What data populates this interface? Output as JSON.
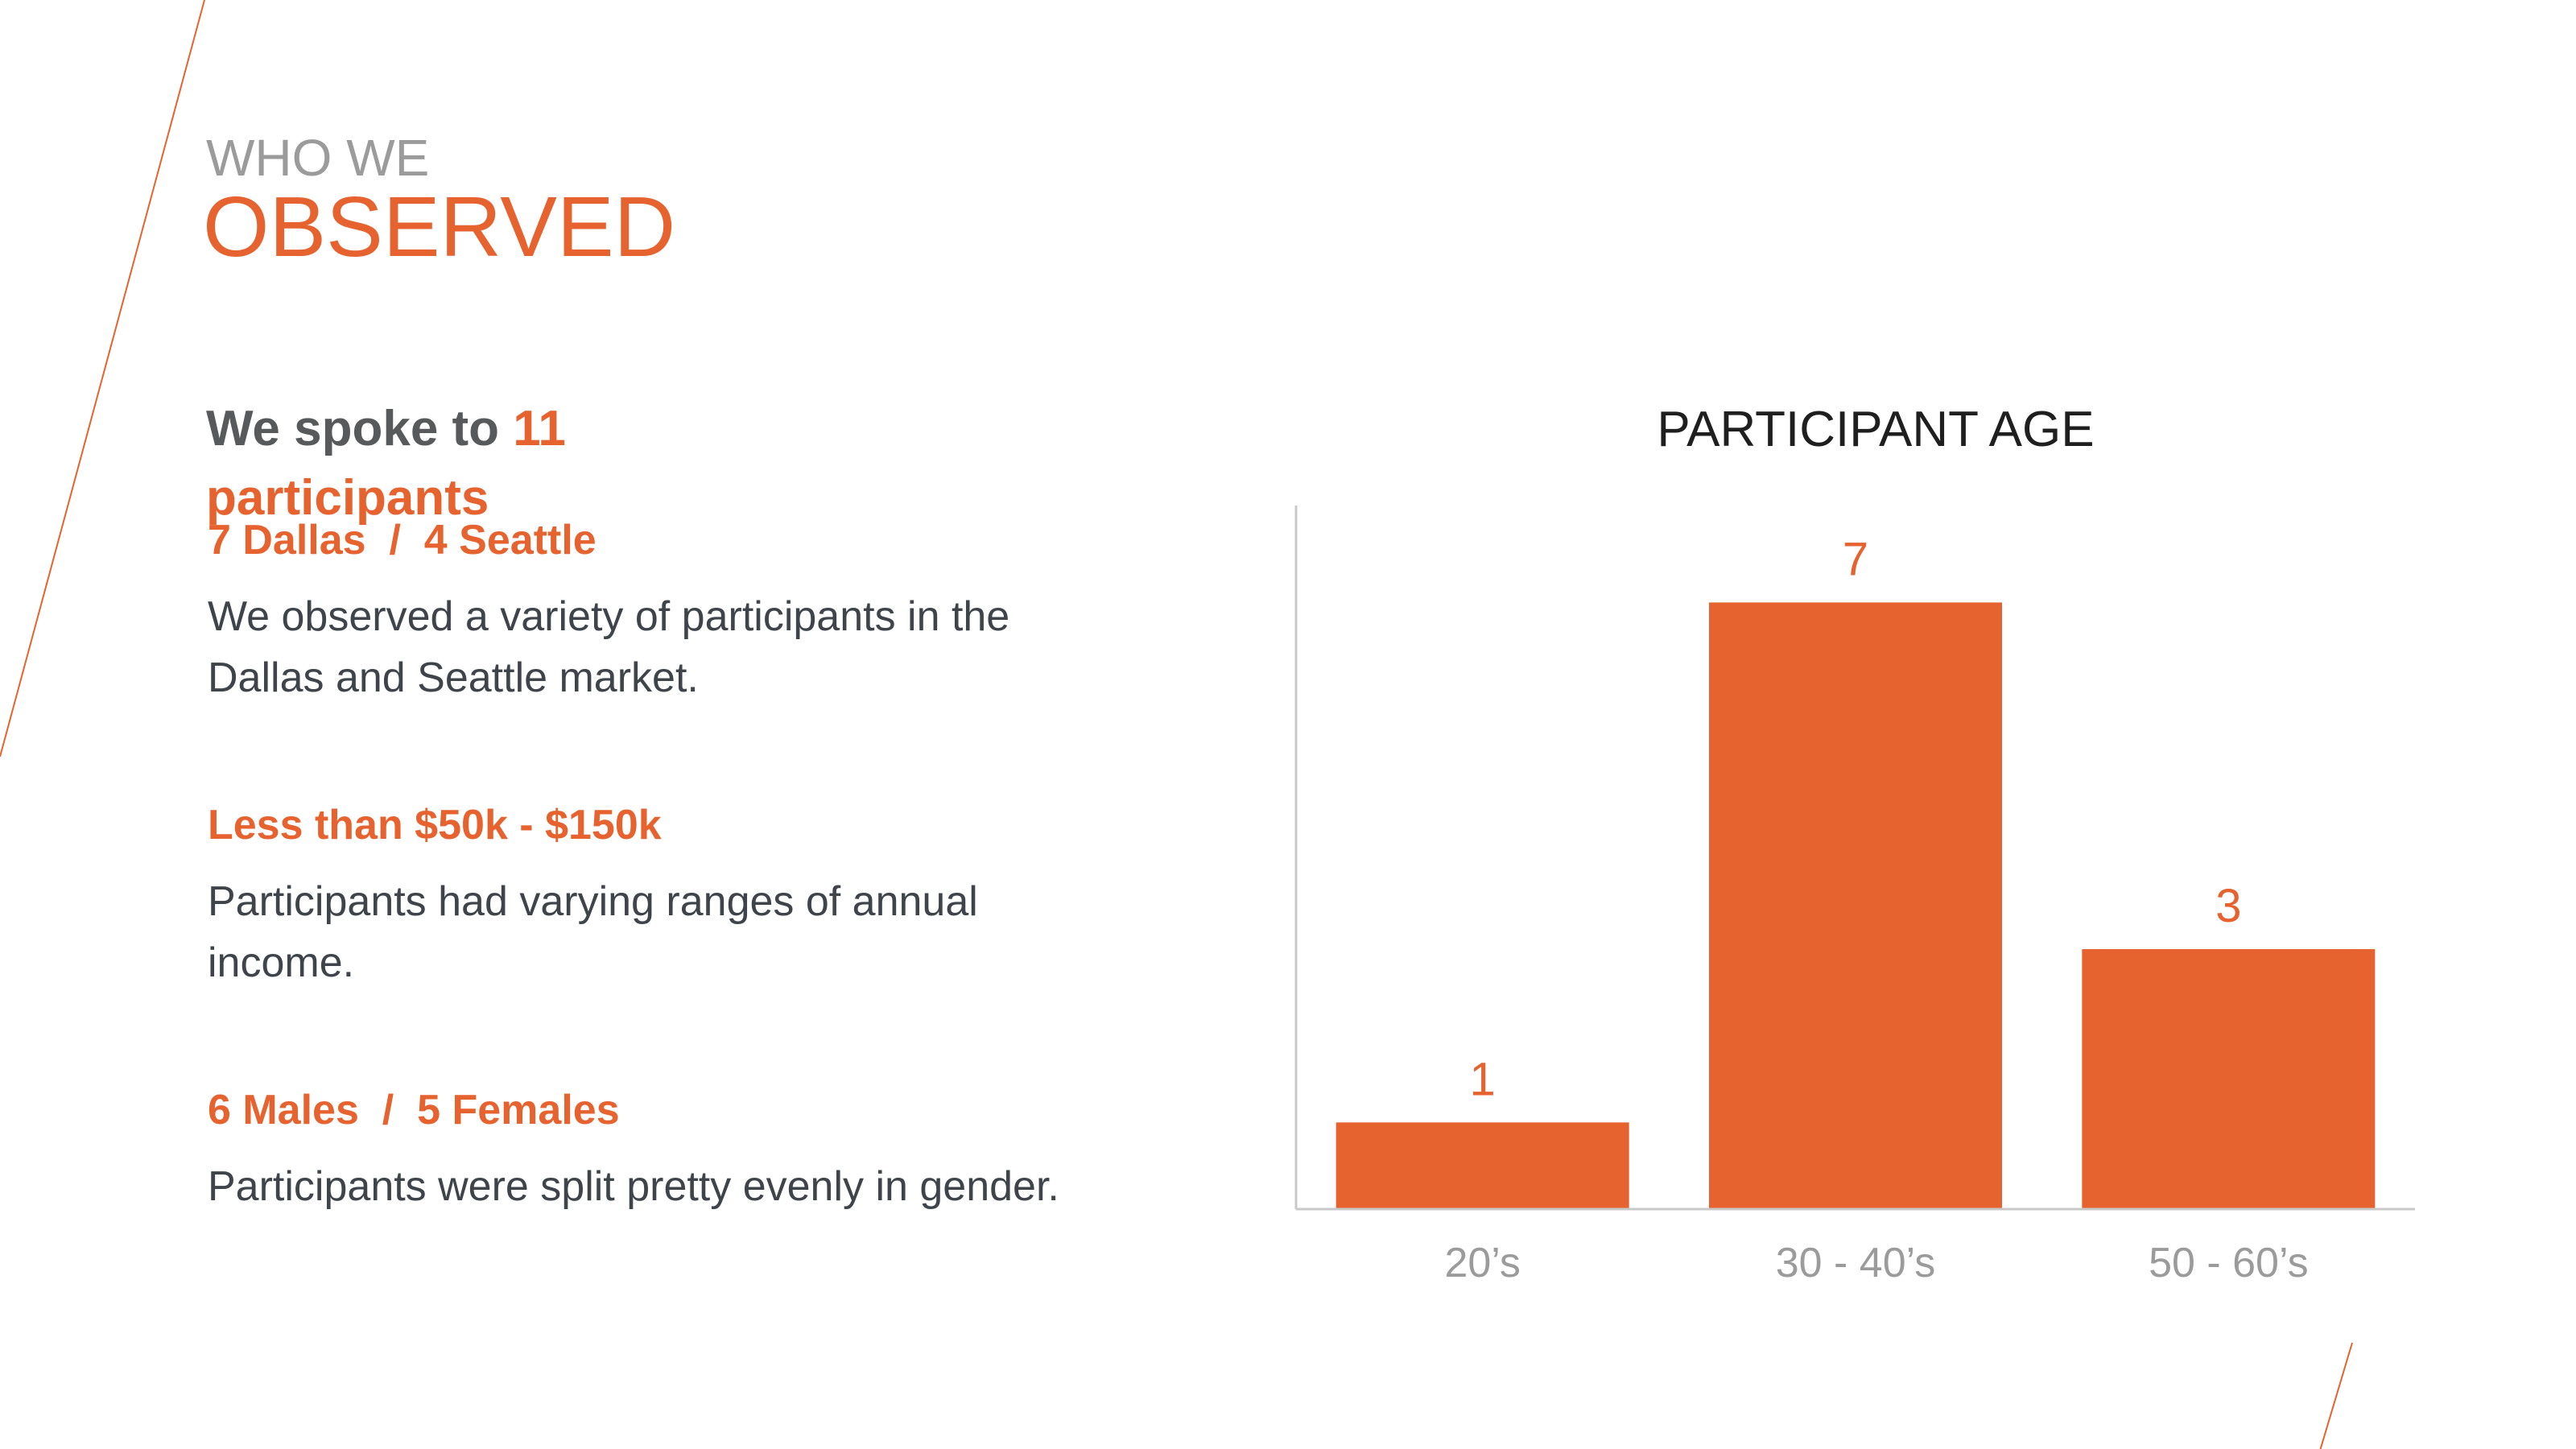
{
  "header": {
    "eyebrow": "WHO WE",
    "title": "OBSERVED"
  },
  "lead": {
    "prefix": "We spoke to ",
    "highlight": "11 participants"
  },
  "blocks": [
    {
      "heading": "7 Dallas  /  4 Seattle",
      "body": "We observed a variety of participants in the Dallas and Seattle market."
    },
    {
      "heading": "Less than $50k - $150k",
      "body": "Participants had varying ranges of annual income."
    },
    {
      "heading": "6 Males  /  5 Females",
      "body": "Participants were split pretty evenly in gender."
    }
  ],
  "colors": {
    "accent": "#e66330",
    "muted_gray": "#9b9b9b",
    "dark_text": "#58595b",
    "body_text": "#3e4449",
    "axis": "#c8c8c8"
  },
  "chart_data": {
    "type": "bar",
    "title": "PARTICIPANT AGE",
    "categories": [
      "20’s",
      "30 - 40’s",
      "50 - 60’s"
    ],
    "values": [
      1,
      7,
      3
    ],
    "data_labels": [
      "1",
      "7",
      "3"
    ],
    "xlabel": "",
    "ylabel": "",
    "ylim": [
      0,
      8.1
    ],
    "grid": false,
    "legend": "none"
  }
}
